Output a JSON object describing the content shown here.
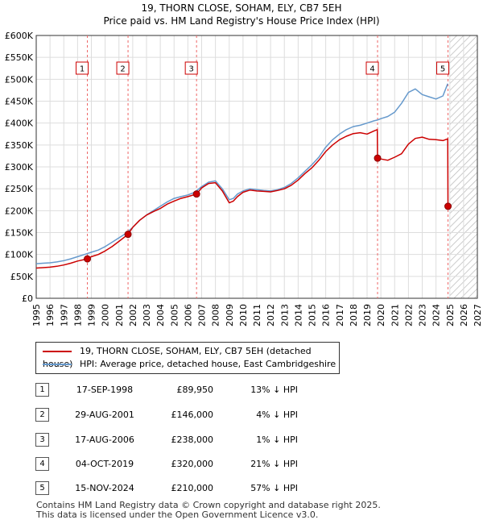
{
  "title": "19, THORN CLOSE, SOHAM, ELY, CB7 5EH",
  "subtitle": "Price paid vs. HM Land Registry's House Price Index (HPI)",
  "colors": {
    "property": "#cc0000",
    "hpi": "#6699cc",
    "marker_line": "#ee6666",
    "grid": "#dddddd"
  },
  "chart_data": {
    "type": "line",
    "xlim": [
      1995,
      2027
    ],
    "ylim": [
      0,
      600000
    ],
    "x_ticks": [
      1995,
      1996,
      1997,
      1998,
      1999,
      2000,
      2001,
      2002,
      2003,
      2004,
      2005,
      2006,
      2007,
      2008,
      2009,
      2010,
      2011,
      2012,
      2013,
      2014,
      2015,
      2016,
      2017,
      2018,
      2019,
      2020,
      2021,
      2022,
      2023,
      2024,
      2025,
      2026,
      2027
    ],
    "y_ticks": [
      0,
      50000,
      100000,
      150000,
      200000,
      250000,
      300000,
      350000,
      400000,
      450000,
      500000,
      550000,
      600000
    ],
    "y_tick_labels": [
      "£0",
      "£50K",
      "£100K",
      "£150K",
      "£200K",
      "£250K",
      "£300K",
      "£350K",
      "£400K",
      "£450K",
      "£500K",
      "£550K",
      "£600K"
    ],
    "forecast_start": 2025.0,
    "series": [
      {
        "name": "19, THORN CLOSE, SOHAM, ELY, CB7 5EH (detached house)",
        "color": "#cc0000",
        "x": [
          1995.0,
          1995.5,
          1996.0,
          1996.5,
          1997.0,
          1997.5,
          1998.0,
          1998.71,
          1999.0,
          1999.5,
          2000.0,
          2000.5,
          2001.0,
          2001.66,
          2002.0,
          2002.5,
          2003.0,
          2003.5,
          2004.0,
          2004.5,
          2005.0,
          2005.5,
          2006.0,
          2006.63,
          2007.0,
          2007.5,
          2008.0,
          2008.5,
          2009.0,
          2009.3,
          2009.6,
          2010.0,
          2010.5,
          2011.0,
          2011.5,
          2012.0,
          2012.5,
          2013.0,
          2013.5,
          2014.0,
          2014.5,
          2015.0,
          2015.5,
          2016.0,
          2016.5,
          2017.0,
          2017.5,
          2018.0,
          2018.5,
          2019.0,
          2019.5,
          2019.74,
          2019.76,
          2020.0,
          2020.5,
          2021.0,
          2021.5,
          2022.0,
          2022.5,
          2023.0,
          2023.5,
          2024.0,
          2024.5,
          2024.85,
          2024.87
        ],
        "values": [
          69000,
          70000,
          71000,
          73000,
          76000,
          80000,
          85000,
          89950,
          95000,
          100000,
          108000,
          118000,
          130000,
          146000,
          162000,
          178000,
          190000,
          198000,
          205000,
          215000,
          222000,
          228000,
          232000,
          238000,
          252000,
          262000,
          264000,
          245000,
          218000,
          222000,
          232000,
          242000,
          247000,
          245000,
          244000,
          243000,
          246000,
          250000,
          258000,
          270000,
          285000,
          298000,
          315000,
          335000,
          350000,
          362000,
          370000,
          376000,
          378000,
          375000,
          382000,
          385000,
          320000,
          318000,
          315000,
          322000,
          330000,
          352000,
          365000,
          368000,
          363000,
          362000,
          360000,
          364000,
          210000
        ]
      },
      {
        "name": "HPI: Average price, detached house, East Cambridgeshire",
        "color": "#6699cc",
        "x": [
          1995.0,
          1995.5,
          1996.0,
          1996.5,
          1997.0,
          1997.5,
          1998.0,
          1998.5,
          1999.0,
          1999.5,
          2000.0,
          2000.5,
          2001.0,
          2001.5,
          2002.0,
          2002.5,
          2003.0,
          2003.5,
          2004.0,
          2004.5,
          2005.0,
          2005.5,
          2006.0,
          2006.5,
          2007.0,
          2007.5,
          2008.0,
          2008.5,
          2009.0,
          2009.3,
          2009.6,
          2010.0,
          2010.5,
          2011.0,
          2011.5,
          2012.0,
          2012.5,
          2013.0,
          2013.5,
          2014.0,
          2014.5,
          2015.0,
          2015.5,
          2016.0,
          2016.5,
          2017.0,
          2017.5,
          2018.0,
          2018.5,
          2019.0,
          2019.5,
          2019.75,
          2020.0,
          2020.5,
          2021.0,
          2021.5,
          2022.0,
          2022.5,
          2023.0,
          2023.5,
          2024.0,
          2024.5,
          2024.85
        ],
        "values": [
          79000,
          80000,
          81000,
          83000,
          86000,
          90000,
          95000,
          100000,
          105000,
          110000,
          118000,
          128000,
          138000,
          148000,
          162000,
          178000,
          190000,
          200000,
          210000,
          220000,
          228000,
          232000,
          236000,
          242000,
          255000,
          265000,
          268000,
          250000,
          225000,
          228000,
          238000,
          245000,
          250000,
          248000,
          246000,
          245000,
          248000,
          253000,
          262000,
          275000,
          290000,
          305000,
          322000,
          345000,
          362000,
          375000,
          385000,
          392000,
          395000,
          400000,
          405000,
          407000,
          410000,
          415000,
          425000,
          445000,
          470000,
          478000,
          465000,
          460000,
          455000,
          462000,
          490000
        ]
      }
    ],
    "sales": [
      {
        "label": "1",
        "x": 1998.71,
        "price": 89950
      },
      {
        "label": "2",
        "x": 2001.66,
        "price": 146000
      },
      {
        "label": "3",
        "x": 2006.63,
        "price": 238000
      },
      {
        "label": "4",
        "x": 2019.76,
        "price": 320000
      },
      {
        "label": "5",
        "x": 2024.87,
        "price": 210000
      }
    ]
  },
  "legend": [
    {
      "label": "19, THORN CLOSE, SOHAM, ELY, CB7 5EH (detached house)",
      "color": "#cc0000"
    },
    {
      "label": "HPI: Average price, detached house, East Cambridgeshire",
      "color": "#6699cc"
    }
  ],
  "transactions": [
    {
      "num": "1",
      "date": "17-SEP-1998",
      "price": "£89,950",
      "hpi": "13% ↓ HPI"
    },
    {
      "num": "2",
      "date": "29-AUG-2001",
      "price": "£146,000",
      "hpi": "4% ↓ HPI"
    },
    {
      "num": "3",
      "date": "17-AUG-2006",
      "price": "£238,000",
      "hpi": "1% ↓ HPI"
    },
    {
      "num": "4",
      "date": "04-OCT-2019",
      "price": "£320,000",
      "hpi": "21% ↓ HPI"
    },
    {
      "num": "5",
      "date": "15-NOV-2024",
      "price": "£210,000",
      "hpi": "57% ↓ HPI"
    }
  ],
  "footer": {
    "line1": "Contains HM Land Registry data © Crown copyright and database right 2025.",
    "line2": "This data is licensed under the Open Government Licence v3.0."
  }
}
